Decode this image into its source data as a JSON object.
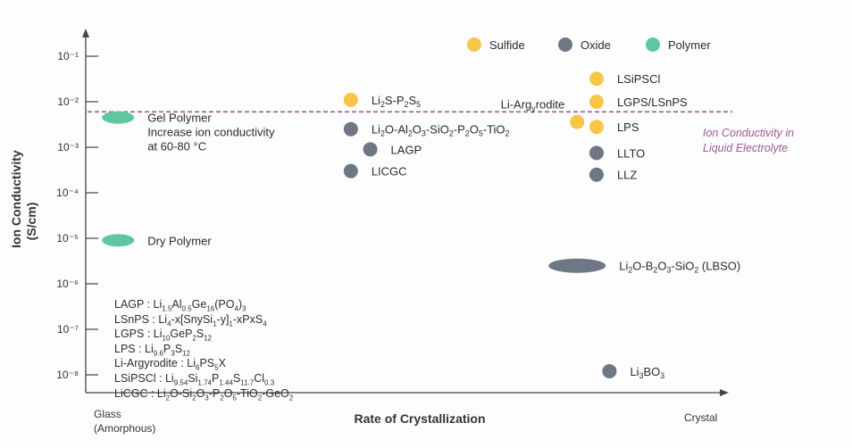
{
  "chart_data": {
    "type": "scatter",
    "title": "",
    "xlabel": "Rate of Crystallization",
    "ylabel": "Ion Conductivity",
    "ylabel_unit": "(S/cm)",
    "x_left_label": "Glass",
    "x_left_sublabel": "(Amorphous)",
    "x_right_label": "Crystal",
    "y_scale": "log",
    "ylim": [
      1e-08,
      0.1
    ],
    "y_ticks": [
      "10⁻¹",
      "10⁻²",
      "10⁻³",
      "10⁻⁴",
      "10⁻⁵",
      "10⁻⁶",
      "10⁻⁷",
      "10⁻⁸"
    ],
    "grid": false,
    "legend": {
      "placement": "top-right",
      "entries": [
        {
          "name": "Sulfide",
          "color": "#f6c746"
        },
        {
          "name": "Oxide",
          "color": "#6f7784"
        },
        {
          "name": "Polymer",
          "color": "#5fc7a0"
        }
      ]
    },
    "reference_line": {
      "y": 0.006,
      "label_line1": "Ion Conductivity in",
      "label_line2": "Liquid Electrolyte",
      "color": "#a05a92"
    },
    "points": [
      {
        "name": "Gel Polymer",
        "class": "Polymer",
        "x": 0.05,
        "y": 0.0045,
        "shape": "ellipse",
        "label_lines": [
          "Gel Polymer",
          "Increase ion conductivity",
          "at 60-80 °C"
        ]
      },
      {
        "name": "Dry Polymer",
        "class": "Polymer",
        "x": 0.05,
        "y": 9e-06,
        "shape": "ellipse",
        "label_lines": [
          "Dry Polymer"
        ]
      },
      {
        "name": "Li2S-P2S5",
        "class": "Sulfide",
        "x": 0.41,
        "y": 0.011,
        "shape": "circle"
      },
      {
        "name": "Li2O-Al2O3-SiO2-P2O5-TiO2",
        "class": "Oxide",
        "x": 0.41,
        "y": 0.0025,
        "shape": "circle"
      },
      {
        "name": "LAGP",
        "class": "Oxide",
        "x": 0.44,
        "y": 0.0009,
        "shape": "circle"
      },
      {
        "name": "LICGC",
        "class": "Oxide",
        "x": 0.41,
        "y": 0.0003,
        "shape": "circle"
      },
      {
        "name": "Li-Argyrodite",
        "class": "Sulfide",
        "x": 0.76,
        "y": 0.0036,
        "shape": "circle"
      },
      {
        "name": "LSiPSCl",
        "class": "Sulfide",
        "x": 0.79,
        "y": 0.032,
        "shape": "circle"
      },
      {
        "name": "LGPS/LSnPS",
        "class": "Sulfide",
        "x": 0.79,
        "y": 0.01,
        "shape": "circle"
      },
      {
        "name": "LPS",
        "class": "Sulfide",
        "x": 0.79,
        "y": 0.0028,
        "shape": "circle"
      },
      {
        "name": "LLTO",
        "class": "Oxide",
        "x": 0.79,
        "y": 0.00075,
        "shape": "circle"
      },
      {
        "name": "LLZ",
        "class": "Oxide",
        "x": 0.79,
        "y": 0.00025,
        "shape": "circle"
      },
      {
        "name": "Li2O-B2O3-SiO2 (LBSO)",
        "class": "Oxide",
        "x": 0.76,
        "y": 2.5e-06,
        "shape": "ellipse"
      },
      {
        "name": "Li3BO3",
        "class": "Oxide",
        "x": 0.81,
        "y": 1.2e-08,
        "shape": "circle"
      }
    ],
    "abbreviations": [
      {
        "key": "LAGP",
        "formula": "Li1.5Al0.5Ge16(PO4)3"
      },
      {
        "key": "LSnPS",
        "formula": "Li4-x[SnySi1-y]1-xPxS4"
      },
      {
        "key": "LGPS",
        "formula": "Li10GeP2S12"
      },
      {
        "key": "LPS",
        "formula": "Li9.6P3S12"
      },
      {
        "key": "Li-Argyrodite",
        "formula": "Li6PS5X"
      },
      {
        "key": "LSiPSCl",
        "formula": "Li9.54Si1.74P1.44S11.7Cl0.3"
      },
      {
        "key": "LiCGC",
        "formula": "Li2O-Si2O3-P2O5-TiO2-GeO2"
      }
    ]
  }
}
